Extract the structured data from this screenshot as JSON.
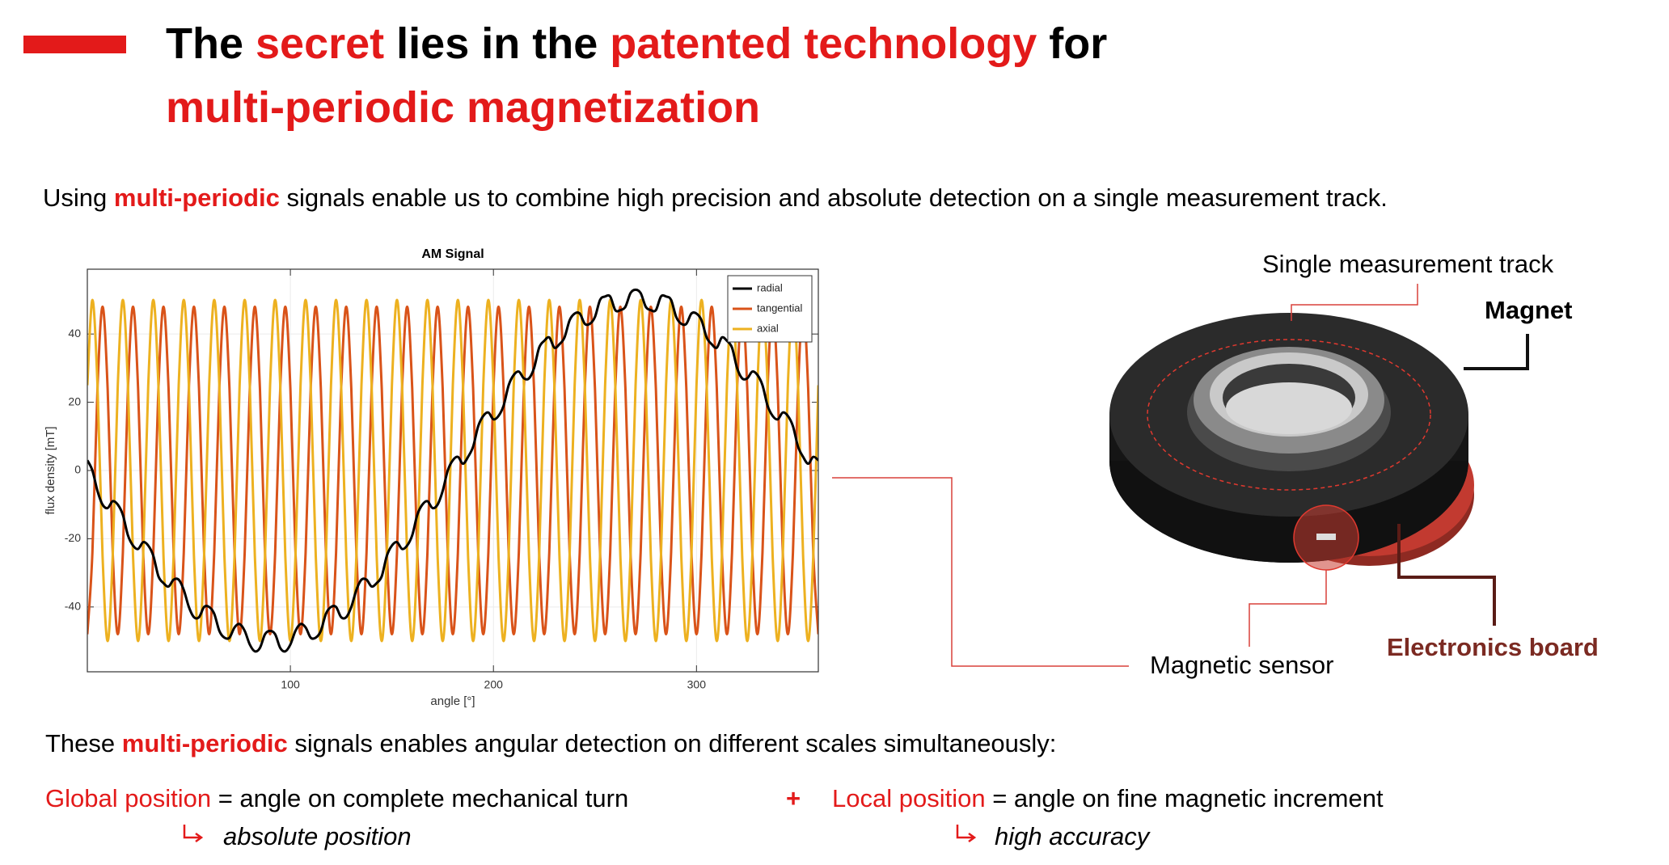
{
  "header": {
    "title_line1": [
      "The ",
      "secret",
      " lies in the ",
      "patented technology",
      " for"
    ],
    "title_line2": "multi-periodic magnetization"
  },
  "intro": [
    "Using ",
    "multi-periodic",
    " signals enable us to combine high precision and absolute detection on a single measurement track."
  ],
  "chart_data": {
    "type": "line",
    "title": "AM Signal",
    "x_label": "angle [°]",
    "y_label": "flux density [mT]",
    "x": [
      0,
      2.5,
      5,
      7.5,
      10,
      12.5,
      15,
      17.5,
      20,
      22.5,
      25,
      27.5,
      30,
      32.5,
      35,
      37.5,
      40,
      42.5,
      45,
      47.5,
      50,
      52.5,
      55,
      57.5,
      60,
      62.5,
      65,
      67.5,
      70,
      72.5,
      75,
      77.5,
      80,
      82.5,
      85,
      87.5,
      90,
      92.5,
      95,
      97.5,
      100,
      102.5,
      105,
      107.5,
      110,
      112.5,
      115,
      117.5,
      120,
      122.5,
      125,
      127.5,
      130,
      132.5,
      135,
      137.5,
      140,
      142.5,
      145,
      147.5,
      150,
      152.5,
      155,
      157.5,
      160,
      162.5,
      165,
      167.5,
      170,
      172.5,
      175,
      177.5,
      180,
      182.5,
      185,
      187.5,
      190,
      192.5,
      195,
      197.5,
      200,
      202.5,
      205,
      207.5,
      210,
      212.5,
      215,
      217.5,
      220,
      222.5,
      225,
      227.5,
      230,
      232.5,
      235,
      237.5,
      240,
      242.5,
      245,
      247.5,
      250,
      252.5,
      255,
      257.5,
      260,
      262.5,
      265,
      267.5,
      270,
      272.5,
      275,
      277.5,
      280,
      282.5,
      285,
      287.5,
      290,
      292.5,
      295,
      297.5,
      300,
      302.5,
      305,
      307.5,
      310,
      312.5,
      315,
      317.5,
      320,
      322.5,
      325,
      327.5,
      330,
      332.5,
      335,
      337.5,
      340,
      342.5,
      345,
      347.5,
      350,
      352.5,
      355,
      357.5,
      360
    ],
    "series": [
      {
        "name": "radial",
        "color": "#000000",
        "values": [
          3,
          0,
          -6,
          -10,
          -11,
          -9,
          -10,
          -13,
          -19,
          -22,
          -23,
          -21,
          -22,
          -25,
          -31,
          -33,
          -34,
          -32,
          -32,
          -35,
          -40,
          -43,
          -43,
          -40,
          -40,
          -42,
          -47,
          -49,
          -49,
          -46,
          -45,
          -47,
          -51,
          -53,
          -52,
          -48,
          -47,
          -48,
          -52,
          -53,
          -51,
          -47,
          -45,
          -46,
          -49,
          -49,
          -47,
          -42,
          -40,
          -40,
          -43,
          -43,
          -40,
          -35,
          -32,
          -32,
          -34,
          -33,
          -31,
          -25,
          -22,
          -21,
          -23,
          -22,
          -19,
          -13,
          -10,
          -9,
          -11,
          -10,
          -6,
          0,
          3,
          4,
          2,
          4,
          7,
          13,
          16,
          17,
          15,
          16,
          19,
          25,
          28,
          29,
          27,
          27,
          30,
          36,
          38,
          39,
          36,
          37,
          39,
          44,
          46,
          46,
          43,
          43,
          45,
          50,
          51,
          51,
          47,
          47,
          48,
          52,
          53,
          52,
          48,
          47,
          47,
          51,
          51,
          50,
          45,
          43,
          43,
          46,
          46,
          44,
          39,
          37,
          36,
          39,
          38,
          36,
          30,
          27,
          27,
          29,
          28,
          25,
          19,
          16,
          15,
          17,
          16,
          13,
          7,
          4,
          2,
          4,
          3
        ]
      },
      {
        "name": "tangential",
        "color": "#d95319",
        "values": [
          -48,
          -24,
          24,
          48,
          24,
          -24,
          -48,
          -24,
          24,
          48,
          24,
          -24,
          -48,
          -24,
          24,
          48,
          24,
          -24,
          -48,
          -24,
          24,
          48,
          24,
          -24,
          -48,
          -24,
          24,
          48,
          24,
          -24,
          -48,
          -24,
          24,
          48,
          24,
          -24,
          -48,
          -24,
          24,
          48,
          24,
          -24,
          -48,
          -24,
          24,
          48,
          24,
          -24,
          -48,
          -24,
          24,
          48,
          24,
          -24,
          -48,
          -24,
          24,
          48,
          24,
          -24,
          -48,
          -24,
          24,
          48,
          24,
          -24,
          -48,
          -24,
          24,
          48,
          24,
          -24,
          -48,
          -24,
          24,
          48,
          24,
          -24,
          -48,
          -24,
          24,
          48,
          24,
          -24,
          -48,
          -24,
          24,
          48,
          24,
          -24,
          -48,
          -24,
          24,
          48,
          24,
          -24,
          -48,
          -24,
          24,
          48,
          24,
          -24,
          -48,
          -24,
          24,
          48,
          24,
          -24,
          -48,
          -24,
          24,
          48,
          24,
          -24,
          -48,
          -24,
          24,
          48,
          24,
          -24,
          -48,
          -24,
          24,
          48,
          24,
          -24,
          -48,
          -24,
          24,
          48,
          24,
          -24,
          -48,
          -24,
          24,
          48,
          24,
          -24,
          -48,
          -24,
          24,
          48,
          24,
          -24,
          -48
        ]
      },
      {
        "name": "axial",
        "color": "#edb120",
        "values": [
          25,
          50,
          25,
          -25,
          -50,
          -25,
          25,
          50,
          25,
          -25,
          -50,
          -25,
          25,
          50,
          25,
          -25,
          -50,
          -25,
          25,
          50,
          25,
          -25,
          -50,
          -25,
          25,
          50,
          25,
          -25,
          -50,
          -25,
          25,
          50,
          25,
          -25,
          -50,
          -25,
          25,
          50,
          25,
          -25,
          -50,
          -25,
          25,
          50,
          25,
          -25,
          -50,
          -25,
          25,
          50,
          25,
          -25,
          -50,
          -25,
          25,
          50,
          25,
          -25,
          -50,
          -25,
          25,
          50,
          25,
          -25,
          -50,
          -25,
          25,
          50,
          25,
          -25,
          -50,
          -25,
          25,
          50,
          25,
          -25,
          -50,
          -25,
          25,
          50,
          25,
          -25,
          -50,
          -25,
          25,
          50,
          25,
          -25,
          -50,
          -25,
          25,
          50,
          25,
          -25,
          -50,
          -25,
          25,
          50,
          25,
          -25,
          -50,
          -25,
          25,
          50,
          25,
          -25,
          -50,
          -25,
          25,
          50,
          25,
          -25,
          -50,
          -25,
          25,
          50,
          25,
          -25,
          -50,
          -25,
          25,
          50,
          25,
          -25,
          -50,
          -25,
          25,
          50,
          25,
          -25,
          -50,
          -25,
          25,
          50,
          25,
          -25,
          -50,
          -25,
          25,
          50,
          25,
          -25,
          -50,
          -25,
          25
        ]
      }
    ],
    "xlim": [
      0,
      360
    ],
    "xticks": [
      100,
      200,
      300
    ],
    "ylim": [
      -59,
      59
    ],
    "yticks": [
      -40,
      -20,
      0,
      20,
      40
    ],
    "grid": true,
    "legend": "upper right"
  },
  "diagram": {
    "track_label": "Single measurement track",
    "magnet_label": "Magnet",
    "board_label": "Electronics board",
    "sensor_label": "Magnetic sensor"
  },
  "summary": {
    "lead": [
      "These ",
      "multi-periodic",
      " signals enables angular detection on different scales simultaneously:"
    ],
    "global": [
      "Global position",
      " = angle on complete mechanical turn"
    ],
    "plus": "+",
    "local": [
      "Local position",
      " = angle on fine magnetic increment"
    ],
    "global_result": "absolute position",
    "local_result": "high accuracy"
  }
}
